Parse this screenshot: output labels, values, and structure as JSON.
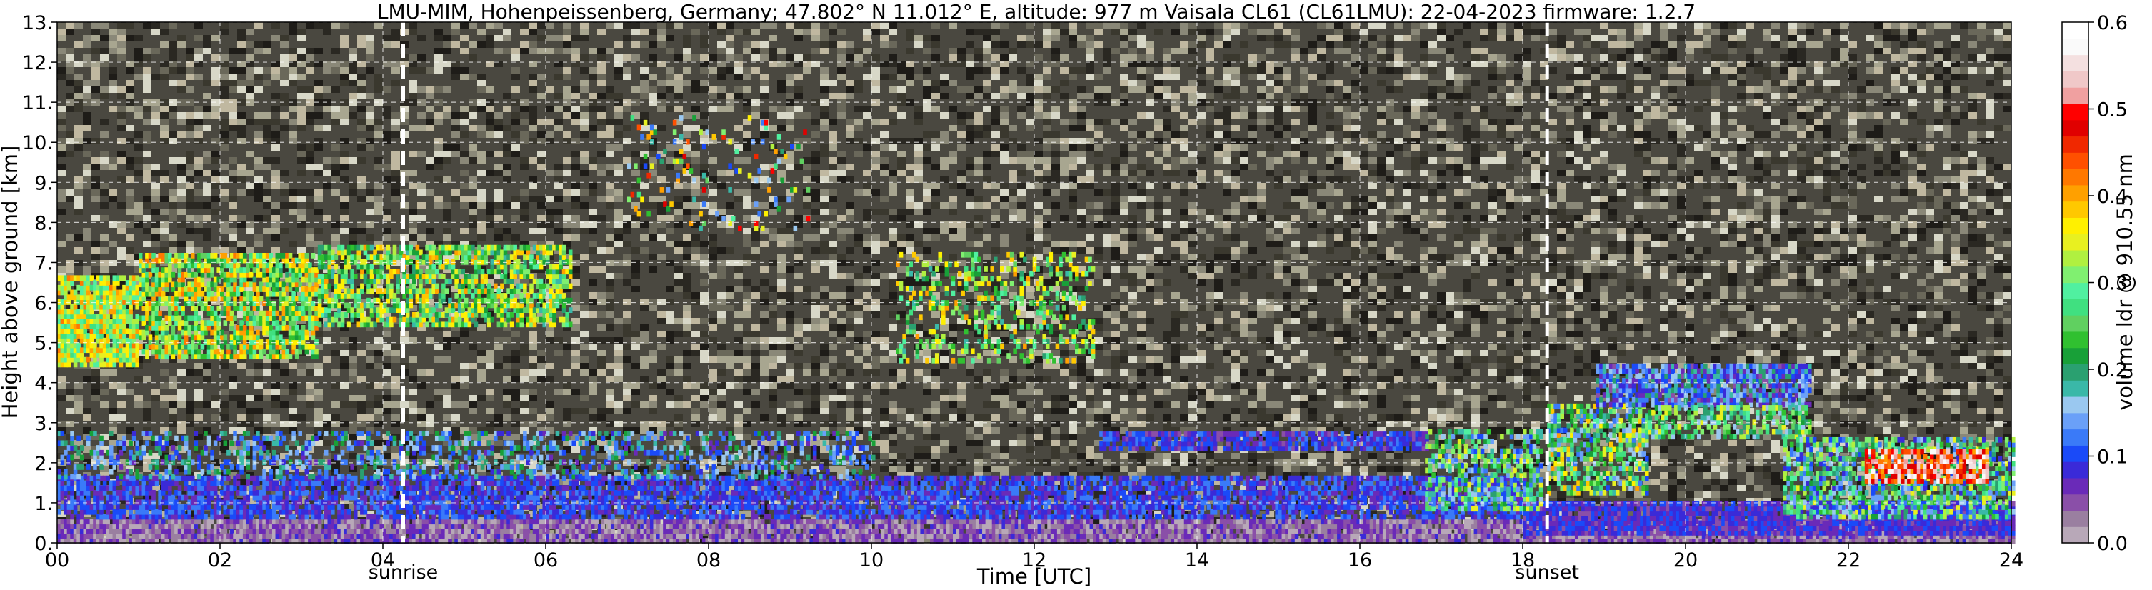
{
  "chart_data": {
    "type": "heatmap",
    "title": "LMU-MIM, Hohenpeissenberg, Germany; 47.802° N 11.012° E, altitude: 977 m    Vaisala CL61 (CL61LMU): 22-04-2023    firmware: 1.2.7",
    "xlabel": "Time [UTC]",
    "ylabel": "Height above ground [km]",
    "xlim": [
      0,
      24
    ],
    "ylim": [
      0,
      13
    ],
    "x_ticks": [
      0,
      2,
      4,
      6,
      8,
      10,
      12,
      14,
      16,
      18,
      20,
      22,
      24
    ],
    "x_tick_labels": [
      "00",
      "02",
      "04",
      "06",
      "08",
      "10",
      "12",
      "14",
      "16",
      "18",
      "20",
      "22",
      "24"
    ],
    "y_ticks": [
      0,
      1,
      2,
      3,
      4,
      5,
      6,
      7,
      8,
      9,
      10,
      11,
      12,
      13
    ],
    "y_tick_labels": [
      "0.",
      "1.",
      "2.",
      "3.",
      "4.",
      "5.",
      "6.",
      "7.",
      "8.",
      "9.",
      "10.",
      "11.",
      "12.",
      "13."
    ],
    "grid": true,
    "markers": [
      {
        "label": "sunrise",
        "x": 4.25
      },
      {
        "label": "sunset",
        "x": 18.3
      }
    ],
    "colorbar": {
      "label": "volume ldr @ 910.55 nm",
      "min": 0.0,
      "max": 0.6,
      "ticks": [
        0.0,
        0.1,
        0.2,
        0.3,
        0.4,
        0.5,
        0.6
      ],
      "tick_labels": [
        "0.0",
        "0.1",
        "0.2",
        "0.3",
        "0.4",
        "0.5",
        "0.6"
      ],
      "colors": [
        "#b8a8b8",
        "#9a7fa0",
        "#8a4fa8",
        "#6a2ab8",
        "#3a2ad8",
        "#1a4af8",
        "#3a7af8",
        "#6aa0f8",
        "#9ac8f0",
        "#3ab8a8",
        "#2aa070",
        "#18a038",
        "#30c030",
        "#60d060",
        "#40e080",
        "#50f0a0",
        "#80f070",
        "#b0f040",
        "#e8f020",
        "#fff000",
        "#ffc800",
        "#ffa000",
        "#ff7800",
        "#ff5000",
        "#f02800",
        "#e00000",
        "#ff0000",
        "#f0a0a0",
        "#f0c8c8",
        "#f4e0e0",
        "#fafafa",
        "#ffffff"
      ]
    }
  }
}
